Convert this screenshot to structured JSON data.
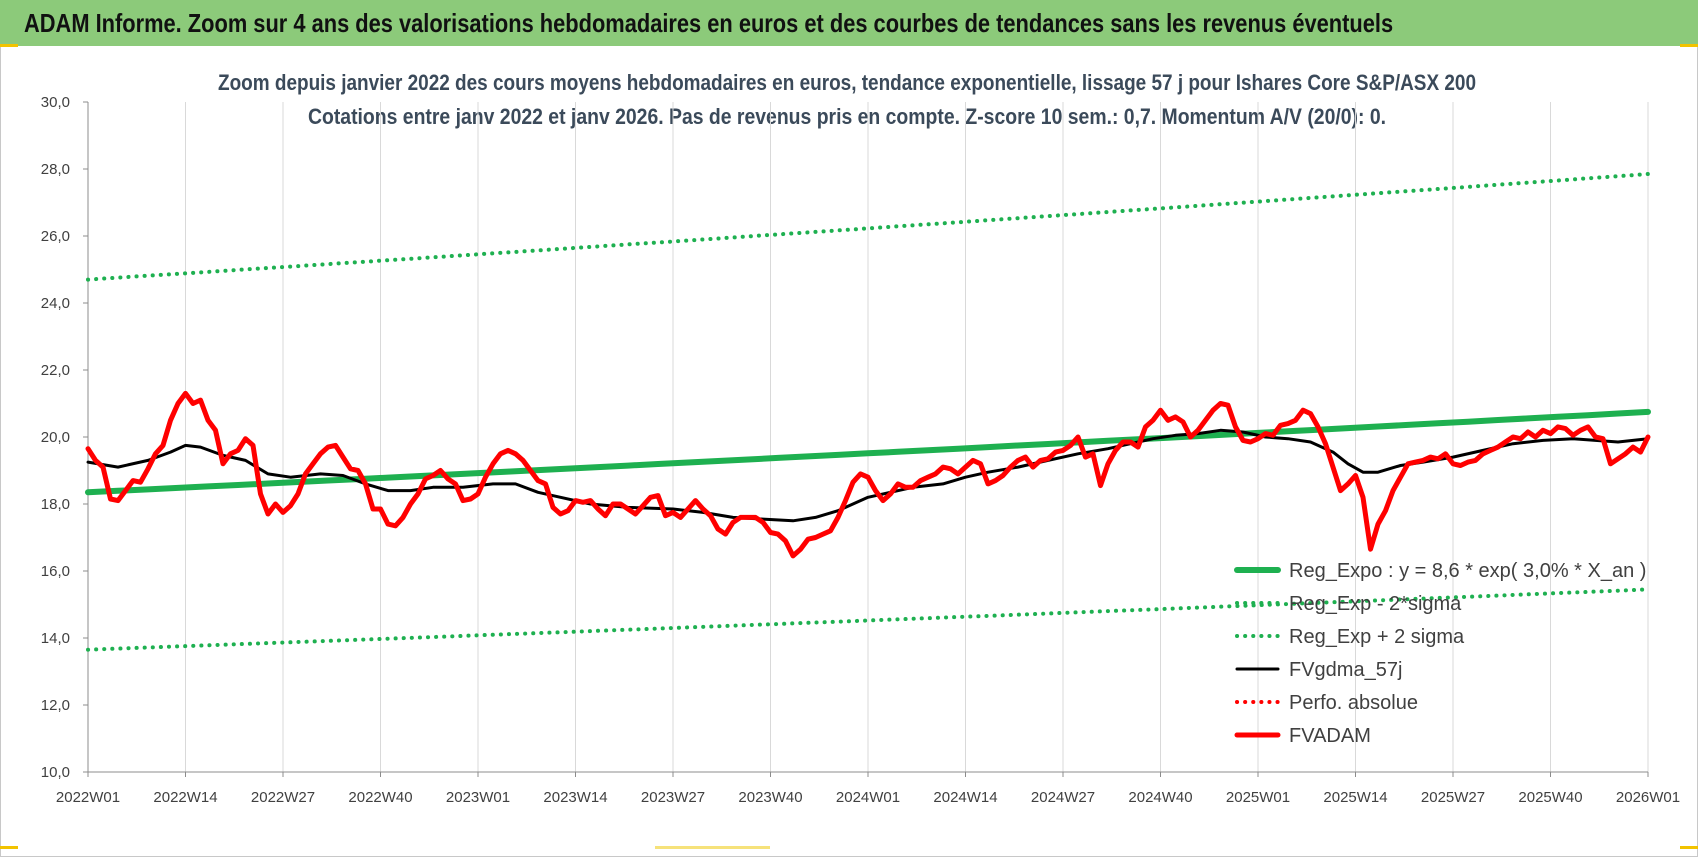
{
  "banner_title": "ADAM Informe. Zoom sur 4 ans des valorisations hebdomadaires en euros et des courbes de tendances sans les revenus éventuels",
  "chart_data": {
    "type": "line",
    "title": [
      "Zoom depuis janvier 2022 des cours moyens hebdomadaires en euros, tendance exponentielle, lissage 57 j pour Ishares Core S&P/ASX 200",
      "Cotations entre janv 2022 et janv 2026. Pas de revenus pris en compte. Z-score 10 sem.: 0,7. Momentum A/V (20/0): 0."
    ],
    "xlabel": "",
    "ylabel": "",
    "ylim": [
      10,
      30
    ],
    "y_ticks": [
      "10,0",
      "12,0",
      "14,0",
      "16,0",
      "18,0",
      "20,0",
      "22,0",
      "24,0",
      "26,0",
      "28,0",
      "30,0"
    ],
    "x_range": [
      0,
      208
    ],
    "x_ticks": [
      {
        "x": 0,
        "label": "2022W01"
      },
      {
        "x": 13,
        "label": "2022W14"
      },
      {
        "x": 26,
        "label": "2022W27"
      },
      {
        "x": 39,
        "label": "2022W40"
      },
      {
        "x": 52,
        "label": "2023W01"
      },
      {
        "x": 65,
        "label": "2023W14"
      },
      {
        "x": 78,
        "label": "2023W27"
      },
      {
        "x": 91,
        "label": "2023W40"
      },
      {
        "x": 104,
        "label": "2024W01"
      },
      {
        "x": 117,
        "label": "2024W14"
      },
      {
        "x": 130,
        "label": "2024W27"
      },
      {
        "x": 143,
        "label": "2024W40"
      },
      {
        "x": 156,
        "label": "2025W01"
      },
      {
        "x": 169,
        "label": "2025W14"
      },
      {
        "x": 182,
        "label": "2025W27"
      },
      {
        "x": 195,
        "label": "2025W40"
      },
      {
        "x": 208,
        "label": "2026W01"
      }
    ],
    "grid": "vertical",
    "legend_position": "bottom-right",
    "series": [
      {
        "name": "Reg_Expo : y = 8,6 * exp( 3,0% *  X_an )",
        "color": "#1eb050",
        "style": "solid-thick",
        "start": 18.35,
        "end": 20.75
      },
      {
        "name": "Reg_Exp - 2*sigma",
        "color": "#1eb050",
        "style": "dotted",
        "start": 13.65,
        "end": 15.45
      },
      {
        "name": "Reg_Exp + 2 sigma",
        "color": "#1eb050",
        "style": "dotted",
        "start": 24.7,
        "end": 27.85
      },
      {
        "name": "FVgdma_57j",
        "color": "#000000",
        "style": "solid",
        "points": [
          [
            0,
            19.25
          ],
          [
            4,
            19.1
          ],
          [
            8,
            19.3
          ],
          [
            11,
            19.55
          ],
          [
            13,
            19.75
          ],
          [
            15,
            19.7
          ],
          [
            18,
            19.45
          ],
          [
            21,
            19.3
          ],
          [
            24,
            18.9
          ],
          [
            27,
            18.8
          ],
          [
            31,
            18.9
          ],
          [
            34,
            18.85
          ],
          [
            37,
            18.6
          ],
          [
            40,
            18.4
          ],
          [
            43,
            18.4
          ],
          [
            46,
            18.5
          ],
          [
            50,
            18.5
          ],
          [
            54,
            18.6
          ],
          [
            57,
            18.6
          ],
          [
            60,
            18.35
          ],
          [
            63,
            18.2
          ],
          [
            67,
            18.0
          ],
          [
            72,
            17.9
          ],
          [
            78,
            17.85
          ],
          [
            82,
            17.75
          ],
          [
            86,
            17.6
          ],
          [
            90,
            17.55
          ],
          [
            94,
            17.5
          ],
          [
            97,
            17.6
          ],
          [
            100,
            17.8
          ],
          [
            104,
            18.2
          ],
          [
            107,
            18.35
          ],
          [
            110,
            18.5
          ],
          [
            114,
            18.6
          ],
          [
            117,
            18.8
          ],
          [
            120,
            18.95
          ],
          [
            124,
            19.1
          ],
          [
            128,
            19.3
          ],
          [
            132,
            19.5
          ],
          [
            136,
            19.65
          ],
          [
            139,
            19.8
          ],
          [
            142,
            19.95
          ],
          [
            145,
            20.05
          ],
          [
            148,
            20.1
          ],
          [
            151,
            20.2
          ],
          [
            154,
            20.15
          ],
          [
            157,
            20.0
          ],
          [
            160,
            19.95
          ],
          [
            163,
            19.85
          ],
          [
            166,
            19.55
          ],
          [
            168,
            19.2
          ],
          [
            170,
            18.95
          ],
          [
            172,
            18.95
          ],
          [
            175,
            19.15
          ],
          [
            178,
            19.25
          ],
          [
            182,
            19.4
          ],
          [
            186,
            19.6
          ],
          [
            190,
            19.8
          ],
          [
            194,
            19.9
          ],
          [
            198,
            19.95
          ],
          [
            201,
            19.9
          ],
          [
            204,
            19.85
          ],
          [
            208,
            19.95
          ]
        ]
      },
      {
        "name": "Perfo. absolue",
        "color": "#ff0000",
        "style": "dotted",
        "points": []
      },
      {
        "name": "FVADAM",
        "color": "#ff0000",
        "style": "solid-thick",
        "points": [
          [
            0,
            19.65
          ],
          [
            1,
            19.3
          ],
          [
            2,
            19.1
          ],
          [
            3,
            18.15
          ],
          [
            4,
            18.1
          ],
          [
            5,
            18.4
          ],
          [
            6,
            18.7
          ],
          [
            7,
            18.65
          ],
          [
            8,
            19.05
          ],
          [
            9,
            19.5
          ],
          [
            10,
            19.75
          ],
          [
            11,
            20.5
          ],
          [
            12,
            21.0
          ],
          [
            13,
            21.3
          ],
          [
            14,
            21.0
          ],
          [
            15,
            21.1
          ],
          [
            16,
            20.5
          ],
          [
            17,
            20.2
          ],
          [
            18,
            19.2
          ],
          [
            19,
            19.5
          ],
          [
            20,
            19.6
          ],
          [
            21,
            19.95
          ],
          [
            22,
            19.75
          ],
          [
            23,
            18.3
          ],
          [
            24,
            17.7
          ],
          [
            25,
            18.0
          ],
          [
            26,
            17.75
          ],
          [
            27,
            17.95
          ],
          [
            28,
            18.3
          ],
          [
            29,
            18.9
          ],
          [
            30,
            19.2
          ],
          [
            31,
            19.5
          ],
          [
            32,
            19.7
          ],
          [
            33,
            19.75
          ],
          [
            34,
            19.4
          ],
          [
            35,
            19.05
          ],
          [
            36,
            19.0
          ],
          [
            37,
            18.6
          ],
          [
            38,
            17.85
          ],
          [
            39,
            17.85
          ],
          [
            40,
            17.4
          ],
          [
            41,
            17.35
          ],
          [
            42,
            17.6
          ],
          [
            43,
            18.0
          ],
          [
            44,
            18.3
          ],
          [
            45,
            18.75
          ],
          [
            46,
            18.85
          ],
          [
            47,
            19.0
          ],
          [
            48,
            18.75
          ],
          [
            49,
            18.6
          ],
          [
            50,
            18.1
          ],
          [
            51,
            18.15
          ],
          [
            52,
            18.3
          ],
          [
            53,
            18.8
          ],
          [
            54,
            19.2
          ],
          [
            55,
            19.5
          ],
          [
            56,
            19.6
          ],
          [
            57,
            19.5
          ],
          [
            58,
            19.3
          ],
          [
            59,
            19.0
          ],
          [
            60,
            18.7
          ],
          [
            61,
            18.6
          ],
          [
            62,
            17.9
          ],
          [
            63,
            17.7
          ],
          [
            64,
            17.8
          ],
          [
            65,
            18.1
          ],
          [
            66,
            18.05
          ],
          [
            67,
            18.1
          ],
          [
            68,
            17.85
          ],
          [
            69,
            17.65
          ],
          [
            70,
            18.0
          ],
          [
            71,
            18.0
          ],
          [
            72,
            17.85
          ],
          [
            73,
            17.7
          ],
          [
            74,
            17.95
          ],
          [
            75,
            18.2
          ],
          [
            76,
            18.25
          ],
          [
            77,
            17.65
          ],
          [
            78,
            17.75
          ],
          [
            79,
            17.6
          ],
          [
            80,
            17.85
          ],
          [
            81,
            18.1
          ],
          [
            82,
            17.85
          ],
          [
            83,
            17.65
          ],
          [
            84,
            17.25
          ],
          [
            85,
            17.1
          ],
          [
            86,
            17.45
          ],
          [
            87,
            17.6
          ],
          [
            88,
            17.6
          ],
          [
            89,
            17.6
          ],
          [
            90,
            17.45
          ],
          [
            91,
            17.15
          ],
          [
            92,
            17.1
          ],
          [
            93,
            16.9
          ],
          [
            94,
            16.45
          ],
          [
            95,
            16.65
          ],
          [
            96,
            16.95
          ],
          [
            97,
            17.0
          ],
          [
            98,
            17.1
          ],
          [
            99,
            17.2
          ],
          [
            100,
            17.6
          ],
          [
            101,
            18.1
          ],
          [
            102,
            18.65
          ],
          [
            103,
            18.9
          ],
          [
            104,
            18.8
          ],
          [
            105,
            18.4
          ],
          [
            106,
            18.1
          ],
          [
            107,
            18.3
          ],
          [
            108,
            18.6
          ],
          [
            109,
            18.5
          ],
          [
            110,
            18.5
          ],
          [
            111,
            18.7
          ],
          [
            112,
            18.8
          ],
          [
            113,
            18.9
          ],
          [
            114,
            19.1
          ],
          [
            115,
            19.05
          ],
          [
            116,
            18.9
          ],
          [
            117,
            19.1
          ],
          [
            118,
            19.3
          ],
          [
            119,
            19.2
          ],
          [
            120,
            18.6
          ],
          [
            121,
            18.7
          ],
          [
            122,
            18.85
          ],
          [
            123,
            19.1
          ],
          [
            124,
            19.3
          ],
          [
            125,
            19.4
          ],
          [
            126,
            19.1
          ],
          [
            127,
            19.3
          ],
          [
            128,
            19.35
          ],
          [
            129,
            19.55
          ],
          [
            130,
            19.6
          ],
          [
            131,
            19.75
          ],
          [
            132,
            20.0
          ],
          [
            133,
            19.4
          ],
          [
            134,
            19.5
          ],
          [
            135,
            18.55
          ],
          [
            136,
            19.2
          ],
          [
            137,
            19.6
          ],
          [
            138,
            19.85
          ],
          [
            139,
            19.85
          ],
          [
            140,
            19.7
          ],
          [
            141,
            20.3
          ],
          [
            142,
            20.5
          ],
          [
            143,
            20.8
          ],
          [
            144,
            20.5
          ],
          [
            145,
            20.6
          ],
          [
            146,
            20.45
          ],
          [
            147,
            20.0
          ],
          [
            148,
            20.2
          ],
          [
            149,
            20.5
          ],
          [
            150,
            20.8
          ],
          [
            151,
            21.0
          ],
          [
            152,
            20.95
          ],
          [
            153,
            20.3
          ],
          [
            154,
            19.9
          ],
          [
            155,
            19.85
          ],
          [
            156,
            19.95
          ],
          [
            157,
            20.1
          ],
          [
            158,
            20.05
          ],
          [
            159,
            20.35
          ],
          [
            160,
            20.4
          ],
          [
            161,
            20.5
          ],
          [
            162,
            20.8
          ],
          [
            163,
            20.7
          ],
          [
            164,
            20.3
          ],
          [
            165,
            19.8
          ],
          [
            166,
            19.1
          ],
          [
            167,
            18.4
          ],
          [
            168,
            18.6
          ],
          [
            169,
            18.85
          ],
          [
            170,
            18.2
          ],
          [
            171,
            16.65
          ],
          [
            172,
            17.4
          ],
          [
            173,
            17.8
          ],
          [
            174,
            18.4
          ],
          [
            175,
            18.8
          ],
          [
            176,
            19.2
          ],
          [
            177,
            19.25
          ],
          [
            178,
            19.3
          ],
          [
            179,
            19.4
          ],
          [
            180,
            19.35
          ],
          [
            181,
            19.5
          ],
          [
            182,
            19.2
          ],
          [
            183,
            19.15
          ],
          [
            184,
            19.25
          ],
          [
            185,
            19.3
          ],
          [
            186,
            19.5
          ],
          [
            187,
            19.6
          ],
          [
            188,
            19.7
          ],
          [
            189,
            19.85
          ],
          [
            190,
            20.0
          ],
          [
            191,
            19.95
          ],
          [
            192,
            20.15
          ],
          [
            193,
            20.0
          ],
          [
            194,
            20.2
          ],
          [
            195,
            20.1
          ],
          [
            196,
            20.3
          ],
          [
            197,
            20.25
          ],
          [
            198,
            20.05
          ],
          [
            199,
            20.2
          ],
          [
            200,
            20.3
          ],
          [
            201,
            20.0
          ],
          [
            202,
            19.95
          ],
          [
            203,
            19.2
          ],
          [
            204,
            19.35
          ],
          [
            205,
            19.5
          ],
          [
            206,
            19.7
          ],
          [
            207,
            19.55
          ],
          [
            208,
            20.0
          ]
        ]
      }
    ]
  }
}
